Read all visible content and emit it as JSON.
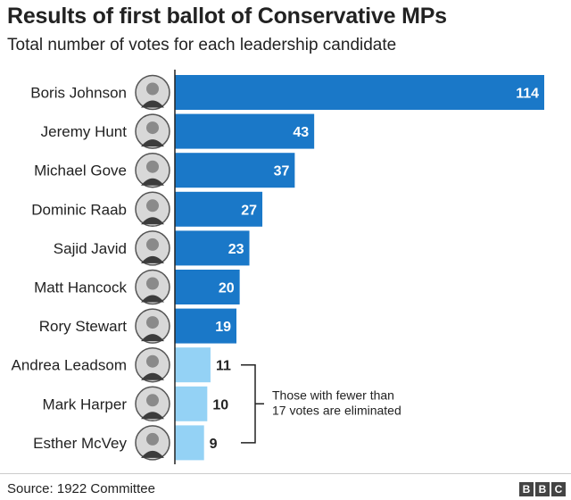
{
  "header": {
    "title": "Results of first ballot of Conservative MPs",
    "subtitle": "Total number of votes for each leadership candidate"
  },
  "footer": {
    "source": "Source: 1922 Committee",
    "logo": [
      "B",
      "B",
      "C"
    ]
  },
  "colors": {
    "qualified": "#1a78c8",
    "eliminated": "#94d2f5",
    "axis": "#222222",
    "portrait_bg": "#d8d8d8"
  },
  "chart_data": {
    "type": "bar",
    "orientation": "horizontal",
    "title": "Results of first ballot of Conservative MPs",
    "subtitle": "Total number of votes for each leadership candidate",
    "categories": [
      "Boris Johnson",
      "Jeremy Hunt",
      "Michael Gove",
      "Dominic Raab",
      "Sajid Javid",
      "Matt Hancock",
      "Rory Stewart",
      "Andrea Leadsom",
      "Mark Harper",
      "Esther McVey"
    ],
    "values": [
      114,
      43,
      37,
      27,
      23,
      20,
      19,
      11,
      10,
      9
    ],
    "eliminated": [
      false,
      false,
      false,
      false,
      false,
      false,
      false,
      true,
      true,
      true
    ],
    "xlim": [
      0,
      114
    ],
    "grid": false,
    "annotation": {
      "text_lines": [
        "Those with fewer than",
        "17 votes are eliminated"
      ],
      "applies_to": [
        "Andrea Leadsom",
        "Mark Harper",
        "Esther McVey"
      ]
    },
    "icons": [
      "portrait-icon"
    ]
  }
}
